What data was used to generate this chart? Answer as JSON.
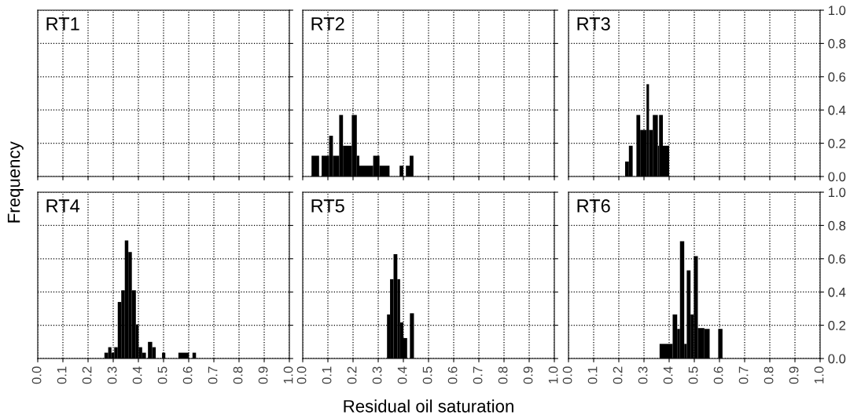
{
  "chart_data": [
    {
      "type": "histogram",
      "title": "RT1",
      "ylabel": "Frequency",
      "xlim": [
        0,
        1
      ],
      "ylim": [
        0,
        1
      ],
      "xticks": [
        {
          "value": 0,
          "label": null
        },
        {
          "value": 0.1,
          "label": null
        },
        {
          "value": 0.2,
          "label": null
        },
        {
          "value": 0.3,
          "label": null
        },
        {
          "value": 0.4,
          "label": null
        },
        {
          "value": 0.5,
          "label": null
        },
        {
          "value": 0.6,
          "label": null
        },
        {
          "value": 0.7,
          "label": null
        },
        {
          "value": 0.8,
          "label": null
        },
        {
          "value": 0.9,
          "label": null
        },
        {
          "value": 1,
          "label": null
        }
      ],
      "yticks": [
        {
          "value": 0,
          "label": null
        },
        {
          "value": 0.2,
          "label": null
        },
        {
          "value": 0.4,
          "label": null
        },
        {
          "value": 0.6,
          "label": null
        },
        {
          "value": 0.8,
          "label": null
        },
        {
          "value": 1,
          "label": null
        }
      ],
      "grid": true,
      "tick_labels": false
    },
    {
      "type": "histogram",
      "title": "RT2",
      "bins": [
        0.035,
        0.065,
        0.075,
        0.105,
        0.12,
        0.145,
        0.16,
        0.195,
        0.215,
        0.225,
        0.28,
        0.305,
        0.345,
        0.385,
        0.4,
        0.41,
        0.425,
        0.44
      ],
      "values": [
        0.125,
        0,
        0.125,
        0.245,
        0.125,
        0.37,
        0.185,
        0.37,
        0.125,
        0.065,
        0.125,
        0.065,
        0,
        0.065,
        0,
        0.065,
        0.125
      ],
      "color": "#000000",
      "xlim": [
        0,
        1
      ],
      "ylim": [
        0,
        1
      ],
      "xticks": [
        {
          "value": 0,
          "label": null
        },
        {
          "value": 0.1,
          "label": null
        },
        {
          "value": 0.2,
          "label": null
        },
        {
          "value": 0.3,
          "label": null
        },
        {
          "value": 0.4,
          "label": null
        },
        {
          "value": 0.5,
          "label": null
        },
        {
          "value": 0.6,
          "label": null
        },
        {
          "value": 0.7,
          "label": null
        },
        {
          "value": 0.8,
          "label": null
        },
        {
          "value": 0.9,
          "label": null
        },
        {
          "value": 1,
          "label": null
        }
      ],
      "yticks": [
        {
          "value": 0,
          "label": null
        },
        {
          "value": 0.2,
          "label": null
        },
        {
          "value": 0.4,
          "label": null
        },
        {
          "value": 0.6,
          "label": null
        },
        {
          "value": 0.8,
          "label": null
        },
        {
          "value": 1,
          "label": null
        }
      ],
      "grid": true,
      "tick_labels": false
    },
    {
      "type": "histogram",
      "title": "RT3",
      "bins": [
        0.225,
        0.24,
        0.255,
        0.27,
        0.285,
        0.31,
        0.32,
        0.335,
        0.355,
        0.36,
        0.375,
        0.4
      ],
      "values": [
        0.09,
        0.185,
        0,
        0.37,
        0.28,
        0.555,
        0.28,
        0.37,
        0.185,
        0.37,
        0.185
      ],
      "color": "#000000",
      "xlim": [
        0,
        1
      ],
      "ylim": [
        0,
        1
      ],
      "xticks": [
        {
          "value": 0,
          "label": null
        },
        {
          "value": 0.1,
          "label": null
        },
        {
          "value": 0.2,
          "label": null
        },
        {
          "value": 0.3,
          "label": null
        },
        {
          "value": 0.4,
          "label": null
        },
        {
          "value": 0.5,
          "label": null
        },
        {
          "value": 0.6,
          "label": null
        },
        {
          "value": 0.7,
          "label": null
        },
        {
          "value": 0.8,
          "label": null
        },
        {
          "value": 0.9,
          "label": null
        },
        {
          "value": 1,
          "label": null
        }
      ],
      "yticks": [
        {
          "value": 0,
          "label": "0.0"
        },
        {
          "value": 0.2,
          "label": "0.2"
        },
        {
          "value": 0.4,
          "label": "0.4"
        },
        {
          "value": 0.6,
          "label": "0.6"
        },
        {
          "value": 0.8,
          "label": "0.8"
        },
        {
          "value": 1,
          "label": "1.0"
        }
      ],
      "grid": true,
      "tick_labels": "y"
    },
    {
      "type": "histogram",
      "title": "RT4",
      "bins": [
        0.265,
        0.28,
        0.293,
        0.304,
        0.318,
        0.332,
        0.346,
        0.36,
        0.374,
        0.39,
        0.401,
        0.415,
        0.43,
        0.438,
        0.455,
        0.469,
        0.494,
        0.507,
        0.559,
        0.601,
        0.615,
        0.629
      ],
      "values": [
        0.035,
        0.068,
        0.035,
        0.068,
        0.34,
        0.41,
        0.71,
        0.64,
        0.41,
        0.205,
        0.068,
        0.035,
        0,
        0.1,
        0.068,
        0,
        0.035,
        0,
        0.035,
        0,
        0.035
      ],
      "color": "#000000",
      "xlim": [
        0,
        1
      ],
      "ylim": [
        0,
        1
      ],
      "xticks": [
        {
          "value": 0,
          "label": "0.0"
        },
        {
          "value": 0.1,
          "label": "0.1"
        },
        {
          "value": 0.2,
          "label": "0.2"
        },
        {
          "value": 0.3,
          "label": "0.3"
        },
        {
          "value": 0.4,
          "label": "0.4"
        },
        {
          "value": 0.5,
          "label": "0.5"
        },
        {
          "value": 0.6,
          "label": "0.6"
        },
        {
          "value": 0.7,
          "label": "0.7"
        },
        {
          "value": 0.8,
          "label": "0.8"
        },
        {
          "value": 0.9,
          "label": "0.9"
        },
        {
          "value": 1,
          "label": "1.0"
        }
      ],
      "yticks": [
        {
          "value": 0,
          "label": null
        },
        {
          "value": 0.2,
          "label": null
        },
        {
          "value": 0.4,
          "label": null
        },
        {
          "value": 0.6,
          "label": null
        },
        {
          "value": 0.8,
          "label": null
        },
        {
          "value": 1,
          "label": null
        }
      ],
      "grid": true,
      "tick_labels": "x"
    },
    {
      "type": "histogram",
      "title": "RT5",
      "xlabel": "Residual oil saturation",
      "bins": [
        0.335,
        0.347,
        0.361,
        0.376,
        0.387,
        0.4,
        0.415,
        0.426,
        0.442
      ],
      "values": [
        0.265,
        0.477,
        0.627,
        0.477,
        0.217,
        0.123,
        0,
        0.272
      ],
      "color": "#000000",
      "xlim": [
        0,
        1
      ],
      "ylim": [
        0,
        1
      ],
      "xticks": [
        {
          "value": 0,
          "label": "0.0"
        },
        {
          "value": 0.1,
          "label": "0.1"
        },
        {
          "value": 0.2,
          "label": "0.2"
        },
        {
          "value": 0.3,
          "label": "0.3"
        },
        {
          "value": 0.4,
          "label": "0.4"
        },
        {
          "value": 0.5,
          "label": "0.5"
        },
        {
          "value": 0.6,
          "label": "0.6"
        },
        {
          "value": 0.7,
          "label": "0.7"
        },
        {
          "value": 0.8,
          "label": "0.8"
        },
        {
          "value": 0.9,
          "label": "0.9"
        },
        {
          "value": 1,
          "label": "1.0"
        }
      ],
      "yticks": [
        {
          "value": 0,
          "label": null
        },
        {
          "value": 0.2,
          "label": null
        },
        {
          "value": 0.4,
          "label": null
        },
        {
          "value": 0.6,
          "label": null
        },
        {
          "value": 0.8,
          "label": null
        },
        {
          "value": 1,
          "label": null
        }
      ],
      "grid": true,
      "tick_labels": "x"
    },
    {
      "type": "histogram",
      "title": "RT6",
      "bins": [
        0.362,
        0.414,
        0.432,
        0.443,
        0.46,
        0.47,
        0.485,
        0.498,
        0.514,
        0.54,
        0.561,
        0.595,
        0.612
      ],
      "values": [
        0.088,
        0.265,
        0.178,
        0.705,
        0.088,
        0.53,
        0.265,
        0.616,
        0.183,
        0.178,
        0,
        0.178
      ],
      "color": "#000000",
      "xlim": [
        0,
        1
      ],
      "ylim": [
        0,
        1
      ],
      "xticks": [
        {
          "value": 0,
          "label": "0.0"
        },
        {
          "value": 0.1,
          "label": "0.1"
        },
        {
          "value": 0.2,
          "label": "0.2"
        },
        {
          "value": 0.3,
          "label": "0.3"
        },
        {
          "value": 0.4,
          "label": "0.4"
        },
        {
          "value": 0.5,
          "label": "0.5"
        },
        {
          "value": 0.6,
          "label": "0.6"
        },
        {
          "value": 0.7,
          "label": "0.7"
        },
        {
          "value": 0.8,
          "label": "0.8"
        },
        {
          "value": 0.9,
          "label": "0.9"
        },
        {
          "value": 1,
          "label": "1.0"
        }
      ],
      "yticks": [
        {
          "value": 0,
          "label": "0.0"
        },
        {
          "value": 0.2,
          "label": "0.2"
        },
        {
          "value": 0.4,
          "label": "0.4"
        },
        {
          "value": 0.6,
          "label": "0.6"
        },
        {
          "value": 0.8,
          "label": "0.8"
        },
        {
          "value": 1,
          "label": "1.0"
        }
      ],
      "grid": true
    }
  ]
}
